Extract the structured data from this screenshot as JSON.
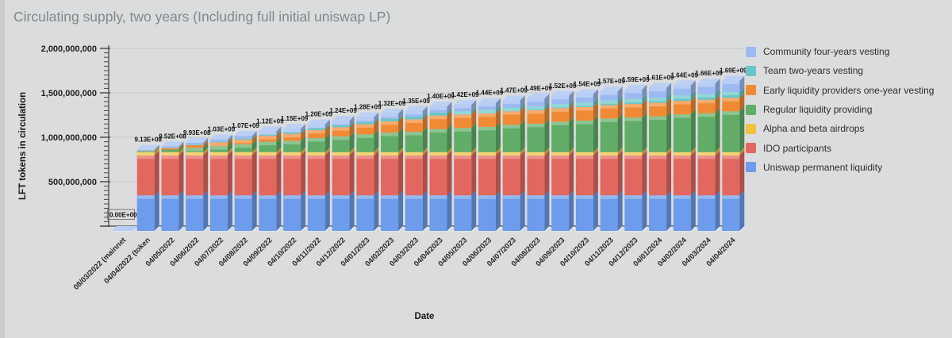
{
  "colors": {
    "background": "#dbdcdd",
    "frame_edge": "#c9cbcd",
    "title_text": "#838789",
    "axis_line": "#454545",
    "gridline": "#c6c7c8",
    "tick_text": "#1d1d1d",
    "value_label_text": "#111111",
    "category_text": "#2a2a2a",
    "legend_text": "#2d2d2d",
    "floor": "#e6ebf1",
    "zero_label_border": "#7a7a7a"
  },
  "chart_data": {
    "type": "bar",
    "stacked": true,
    "three_d": true,
    "title": "Circulating supply, two years (Including full initial uniswap LP)",
    "xlabel": "Date",
    "ylabel": "LFT tokens in circulation",
    "ylim": [
      0,
      2000000000
    ],
    "y_major_tick": 500000000,
    "y_minor_tick": 50000000,
    "y_tick_labels": [
      "2,000,000,000",
      "1,500,000,000",
      "1,000,000,000",
      "500,000,000"
    ],
    "grid": "horizontal-only",
    "legend_position": "right",
    "categories": [
      "08/03/2022 (mainnet",
      "04/04/2022 (token",
      "04/05/2022",
      "04/06/2022",
      "04/07/2022",
      "04/08/2022",
      "04/09/2022",
      "04/10/2022",
      "04/11/2022",
      "04/12/2022",
      "04/01/2023",
      "04/02/2023",
      "04/03/2023",
      "04/04/2023",
      "04/05/2023",
      "04/06/2023",
      "04/07/2023",
      "04/08/2023",
      "04/09/2023",
      "04/10/2023",
      "04/11/2023",
      "04/12/2023",
      "04/01/2024",
      "04/02/2024",
      "04/03/2024",
      "04/04/2024"
    ],
    "bar_total_labels": [
      "0.00E+00",
      "9.13E+08",
      "9.52E+08",
      "9.93E+08",
      "1.03E+09",
      "1.07E+09",
      "1.12E+09",
      "1.15E+09",
      "1.20E+09",
      "1.24E+09",
      "1.28E+09",
      "1.32E+09",
      "1.35E+09",
      "1.40E+09",
      "1.42E+09",
      "1.44E+09",
      "1.47E+09",
      "1.49E+09",
      "1.52E+09",
      "1.54E+09",
      "1.57E+09",
      "1.59E+09",
      "1.61E+09",
      "1.64E+09",
      "1.66E+09",
      "1.69E+09"
    ],
    "series_note": "Series listed in legend order (top of stack first); stack renders bottom-to-top in reverse order. Segment values estimated from bar geometry; per-bar sums equal the displayed total labels.",
    "series": [
      {
        "name": "Community four-years vesting",
        "color": "#9cb9f1",
        "values": [
          0,
          13000000,
          18000000,
          22000000,
          27000000,
          31000000,
          36000000,
          41000000,
          45000000,
          50000000,
          54000000,
          59000000,
          64000000,
          68000000,
          73000000,
          77000000,
          82000000,
          87000000,
          91000000,
          96000000,
          100000000,
          105000000,
          110000000,
          114000000,
          119000000,
          124000000
        ]
      },
      {
        "name": "Team two-years vesting",
        "color": "#68c6c8",
        "values": [
          0,
          0,
          3000000,
          6000000,
          8000000,
          11000000,
          14000000,
          17000000,
          20000000,
          23000000,
          25000000,
          28000000,
          31000000,
          34000000,
          37000000,
          40000000,
          42000000,
          45000000,
          48000000,
          51000000,
          54000000,
          57000000,
          59000000,
          62000000,
          65000000,
          68000000
        ]
      },
      {
        "name": "Early liquidity providers one-year vesting",
        "color": "#f18a34",
        "values": [
          0,
          4000000,
          16000000,
          29000000,
          41000000,
          53000000,
          66000000,
          78000000,
          90000000,
          103000000,
          115000000,
          127000000,
          140000000,
          152000000,
          152000000,
          152000000,
          152000000,
          152000000,
          152000000,
          152000000,
          152000000,
          152000000,
          152000000,
          152000000,
          152000000,
          152000000
        ]
      },
      {
        "name": "Regular liquidity providing",
        "color": "#61ad68",
        "values": [
          0,
          10000000,
          29000000,
          50000000,
          68000000,
          89000000,
          118000000,
          128000000,
          159000000,
          178000000,
          200000000,
          220000000,
          229000000,
          260000000,
          272000000,
          285000000,
          308000000,
          320000000,
          343000000,
          355000000,
          378000000,
          390000000,
          403000000,
          426000000,
          438000000,
          460000000
        ]
      },
      {
        "name": "Alpha and beta airdrops",
        "color": "#f0c33e",
        "values": [
          0,
          36000000,
          36000000,
          36000000,
          36000000,
          36000000,
          36000000,
          36000000,
          36000000,
          36000000,
          36000000,
          36000000,
          36000000,
          36000000,
          36000000,
          36000000,
          36000000,
          36000000,
          36000000,
          36000000,
          36000000,
          36000000,
          36000000,
          36000000,
          36000000,
          36000000
        ]
      },
      {
        "name": "IDO participants",
        "color": "#e2685f",
        "values": [
          0,
          450000000,
          450000000,
          450000000,
          450000000,
          450000000,
          450000000,
          450000000,
          450000000,
          450000000,
          450000000,
          450000000,
          450000000,
          450000000,
          450000000,
          450000000,
          450000000,
          450000000,
          450000000,
          450000000,
          450000000,
          450000000,
          450000000,
          450000000,
          450000000,
          450000000
        ]
      },
      {
        "name": "Uniswap permanent liquidity",
        "color": "#6c9ceb",
        "values": [
          0,
          400000000,
          400000000,
          400000000,
          400000000,
          400000000,
          400000000,
          400000000,
          400000000,
          400000000,
          400000000,
          400000000,
          400000000,
          400000000,
          400000000,
          400000000,
          400000000,
          400000000,
          400000000,
          400000000,
          400000000,
          400000000,
          400000000,
          400000000,
          400000000,
          400000000
        ]
      }
    ]
  }
}
